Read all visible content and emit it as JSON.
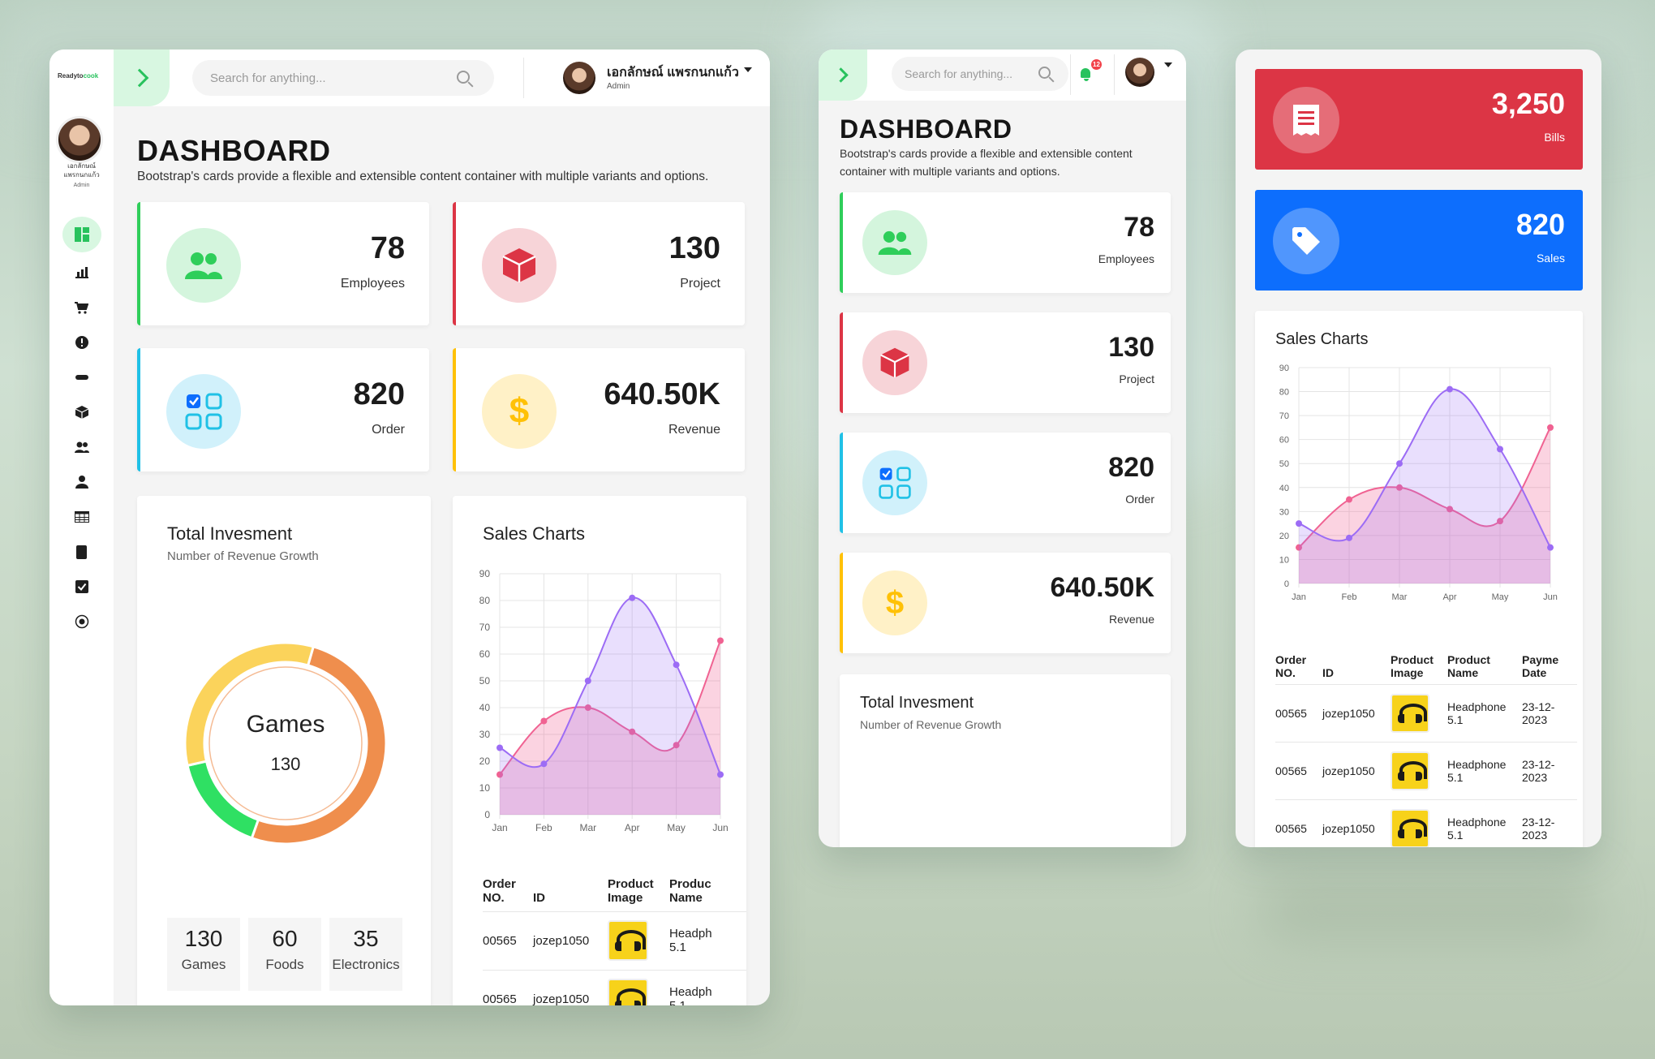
{
  "brand": {
    "part1": "Readyto",
    "part2": "cook"
  },
  "user": {
    "name": "เอกลักษณ์ แพรกนกแก้ว",
    "name_short1": "เอกลักษณ์",
    "name_short2": "แพรกนกแก้ว",
    "role": "Admin"
  },
  "search": {
    "placeholder": "Search for anything..."
  },
  "notifications": {
    "count": "12"
  },
  "page": {
    "title": "DASHBOARD",
    "description": "Bootstrap's cards provide a flexible and extensible content container with multiple variants and options.",
    "description_l1": "Bootstrap's cards provide a flexible and extensible content",
    "description_l2": "container with multiple variants and options."
  },
  "stats": [
    {
      "value": "78",
      "label": "Employees",
      "color": "#2fce5a",
      "icon": "users-icon"
    },
    {
      "value": "130",
      "label": "Project",
      "color": "#dc3545",
      "icon": "cube-icon"
    },
    {
      "value": "820",
      "label": "Order",
      "color": "#20c1e6",
      "icon": "grid-icon"
    },
    {
      "value": "640.50K",
      "label": "Revenue",
      "color": "#ffc107",
      "icon": "dollar-icon"
    }
  ],
  "color_cards": [
    {
      "value": "3,250",
      "label": "Bills",
      "color": "#dc3545",
      "icon": "receipt-icon"
    },
    {
      "value": "820",
      "label": "Sales",
      "color": "#0d6efd",
      "icon": "tag-icon"
    }
  ],
  "investment": {
    "title": "Total Invesment",
    "subtitle": "Number of Revenue Growth",
    "center_label": "Games",
    "center_value": "130",
    "breakdown": [
      {
        "value": "130",
        "label": "Games"
      },
      {
        "value": "60",
        "label": "Foods"
      },
      {
        "value": "35",
        "label": "Electronics"
      }
    ]
  },
  "sales_chart_title": "Sales Charts",
  "chart_data": {
    "type": "area",
    "categories": [
      "Jan",
      "Feb",
      "Mar",
      "Apr",
      "May",
      "Jun"
    ],
    "ylim": [
      0,
      90
    ],
    "yticks": [
      0,
      10,
      20,
      30,
      40,
      50,
      60,
      70,
      80,
      90
    ],
    "grid": true,
    "series": [
      {
        "values": [
          15,
          35,
          40,
          31,
          26,
          65
        ],
        "color": "#f06292"
      },
      {
        "values": [
          25,
          19,
          50,
          81,
          56,
          15
        ],
        "color": "#9c6cf5"
      }
    ],
    "donut": {
      "type": "pie",
      "slices": [
        {
          "value": 51,
          "color": "#ef8e4d"
        },
        {
          "value": 16,
          "color": "#2fe063"
        },
        {
          "value": 33,
          "color": "#fbd35b"
        }
      ]
    }
  },
  "orders_table": {
    "headers": {
      "order1": "Order",
      "order2": "NO.",
      "id": "ID",
      "img1": "Product",
      "img2": "Image",
      "name1": "Product",
      "name2": "Name",
      "name1_cut": "Produc",
      "date1": "Payme",
      "date2": "Date"
    },
    "rows": [
      {
        "order": "00565",
        "id": "jozep1050",
        "name1": "Headphone",
        "name2": "5.1",
        "date1": "23-12-",
        "date2": "2023"
      },
      {
        "order": "00565",
        "id": "jozep1050",
        "name1": "Headphone",
        "name2": "5.1",
        "date1": "23-12-",
        "date2": "2023"
      },
      {
        "order": "00565",
        "id": "jozep1050",
        "name1": "Headphone",
        "name2": "5.1",
        "date1": "23-12-",
        "date2": "2023"
      }
    ],
    "name_cut": "Headph"
  }
}
